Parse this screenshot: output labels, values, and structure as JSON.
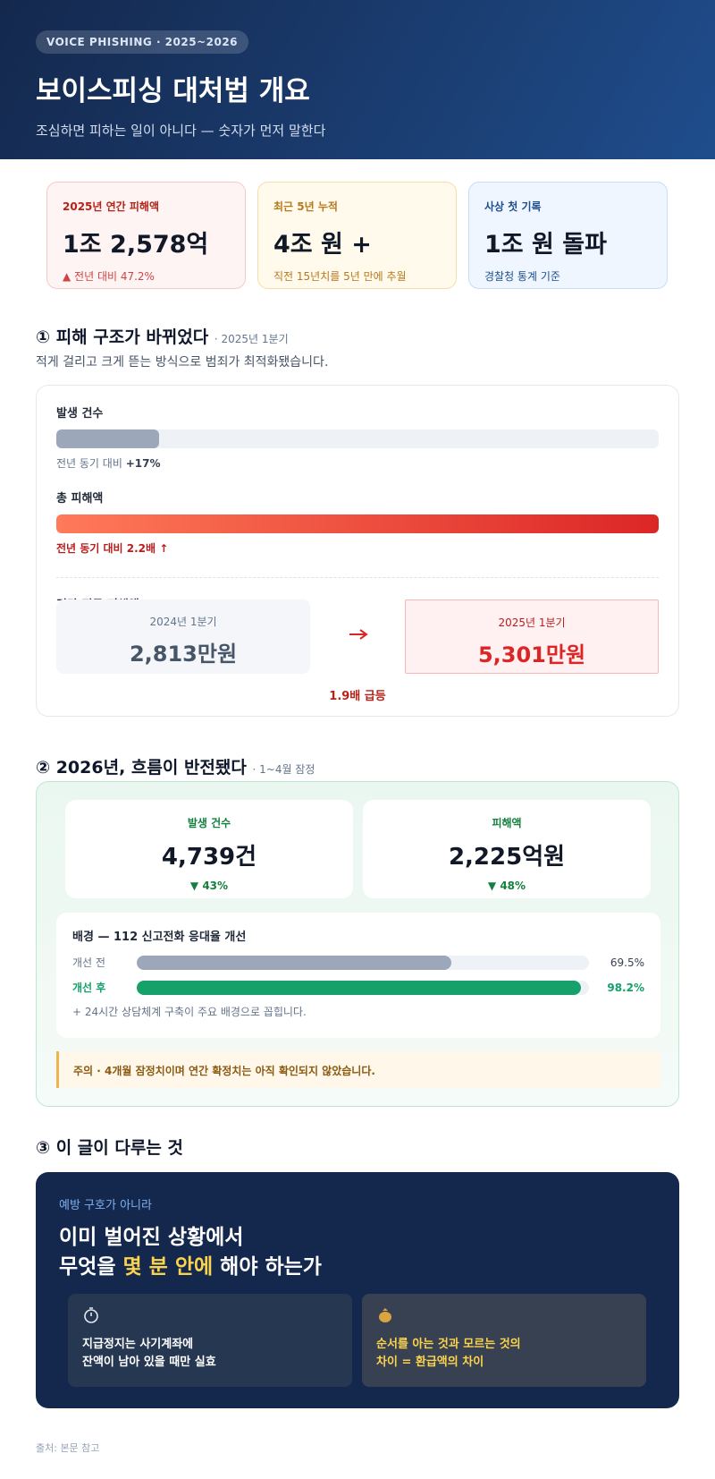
{
  "header": {
    "tag": "VOICE PHISHING · 2025~2026",
    "title": "보이스피싱 대처법 개요",
    "subtitle": "조심하면 피하는 일이 아니다 — 숫자가 먼저 말한다"
  },
  "stats": [
    {
      "label": "2025년 연간 피해액",
      "value": "1조 2,578억",
      "note": "▲ 전년 대비 47.2%"
    },
    {
      "label": "최근 5년 누적",
      "value": "4조 원 +",
      "note": "직전 15년치를 5년 만에 추월"
    },
    {
      "label": "사상 첫 기록",
      "value": "1조 원 돌파",
      "note": "경찰청 통계 기준"
    }
  ],
  "section1": {
    "title": "① 피해 구조가 바뀌었다",
    "period": "· 2025년 1분기",
    "description": "적게 걸리고 크게 뜯는 방식으로 범죄가 최적화됐습니다.",
    "count": {
      "label": "발생 건수",
      "note": "전년 동기 대비",
      "change": "+17%"
    },
    "damage": {
      "label": "총 피해액",
      "note": "전년 동기 대비 2.2배 ↑"
    },
    "average": {
      "label": "건당 평균 피해액",
      "before": {
        "period": "2024년 1분기",
        "value": "2,813만원"
      },
      "after": {
        "period": "2025년 1분기",
        "value": "5,301만원"
      },
      "change": "1.9배 급등"
    }
  },
  "section2": {
    "title": "② 2026년, 흐름이 반전됐다",
    "period": "· 1~4월 잠정",
    "stats": [
      {
        "label": "발생 건수",
        "value": "4,739건",
        "change": "▼ 43%"
      },
      {
        "label": "피해액",
        "value": "2,225억원",
        "change": "▼ 48%"
      }
    ],
    "background": {
      "title": "배경 — 112 신고전화 응대율 개선",
      "rates": [
        {
          "label": "개선 전",
          "value": 69.5,
          "value_label": "69.5%",
          "color": "#9ca8ba"
        },
        {
          "label": "개선 후",
          "value": 98.2,
          "value_label": "98.2%",
          "color": "#16a06a"
        }
      ],
      "note": "+ 24시간 상담체계 구축이 주요 배경으로 꼽힙니다."
    },
    "warning": "주의 · 4개월 잠정치이며 연간 확정치는 아직 확인되지 않았습니다."
  },
  "section3": {
    "title": "③ 이 글이 다루는 것",
    "kicker": "예방 구호가 아니라",
    "headline": [
      "이미 벌어진 상황에서",
      "무엇을 ",
      "몇 분 안에",
      " 해야 하는가"
    ],
    "points": [
      [
        "지급정지는 사기계좌에",
        "잔액이 남아 있을 때만 실효"
      ],
      [
        "순서를 아는 것과 모르는 것의",
        "차이 = 환급액의 차이"
      ]
    ]
  },
  "footer": {
    "source": "출처: 본문 참고"
  }
}
